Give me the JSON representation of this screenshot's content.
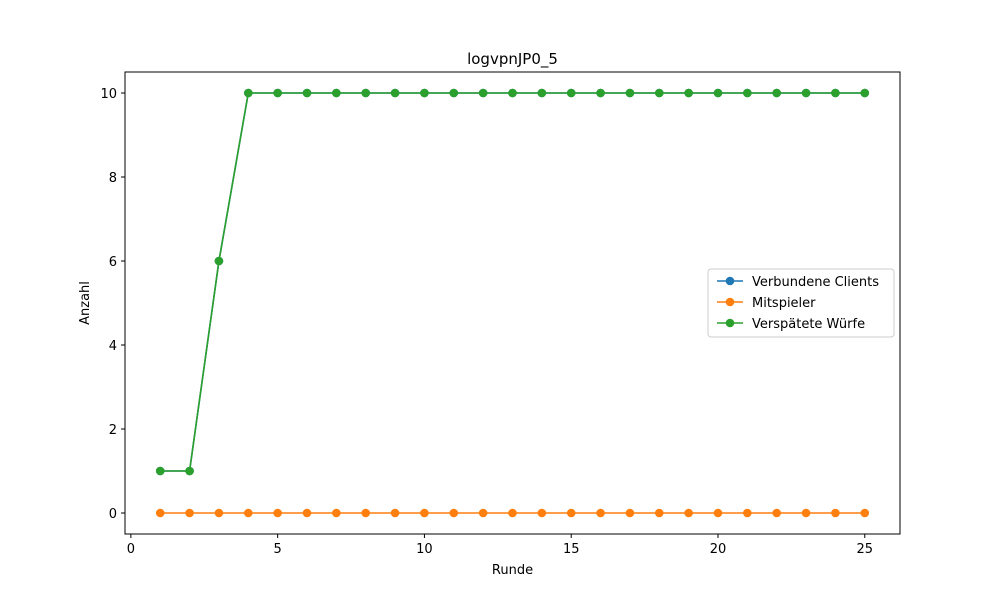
{
  "chart_data": {
    "type": "line",
    "title": "logvpnJP0_5",
    "xlabel": "Runde",
    "ylabel": "Anzahl",
    "xlim": [
      -0.2,
      26.2
    ],
    "ylim": [
      -0.5,
      10.5
    ],
    "xticks": [
      0,
      5,
      10,
      15,
      20,
      25
    ],
    "yticks": [
      0,
      2,
      4,
      6,
      8,
      10
    ],
    "grid": false,
    "legend_position": "center-right",
    "x": [
      1,
      2,
      3,
      4,
      5,
      6,
      7,
      8,
      9,
      10,
      11,
      12,
      13,
      14,
      15,
      16,
      17,
      18,
      19,
      20,
      21,
      22,
      23,
      24,
      25
    ],
    "series": [
      {
        "name": "Verbundene Clients",
        "color": "#1f77b4",
        "values": [
          1,
          1,
          6,
          10,
          10,
          10,
          10,
          10,
          10,
          10,
          10,
          10,
          10,
          10,
          10,
          10,
          10,
          10,
          10,
          10,
          10,
          10,
          10,
          10,
          10
        ]
      },
      {
        "name": "Mitspieler",
        "color": "#ff7f0e",
        "values": [
          0,
          0,
          0,
          0,
          0,
          0,
          0,
          0,
          0,
          0,
          0,
          0,
          0,
          0,
          0,
          0,
          0,
          0,
          0,
          0,
          0,
          0,
          0,
          0,
          0
        ]
      },
      {
        "name": "Verspätete Würfe",
        "color": "#2ca02c",
        "values": [
          1,
          1,
          6,
          10,
          10,
          10,
          10,
          10,
          10,
          10,
          10,
          10,
          10,
          10,
          10,
          10,
          10,
          10,
          10,
          10,
          10,
          10,
          10,
          10,
          10
        ]
      }
    ]
  }
}
